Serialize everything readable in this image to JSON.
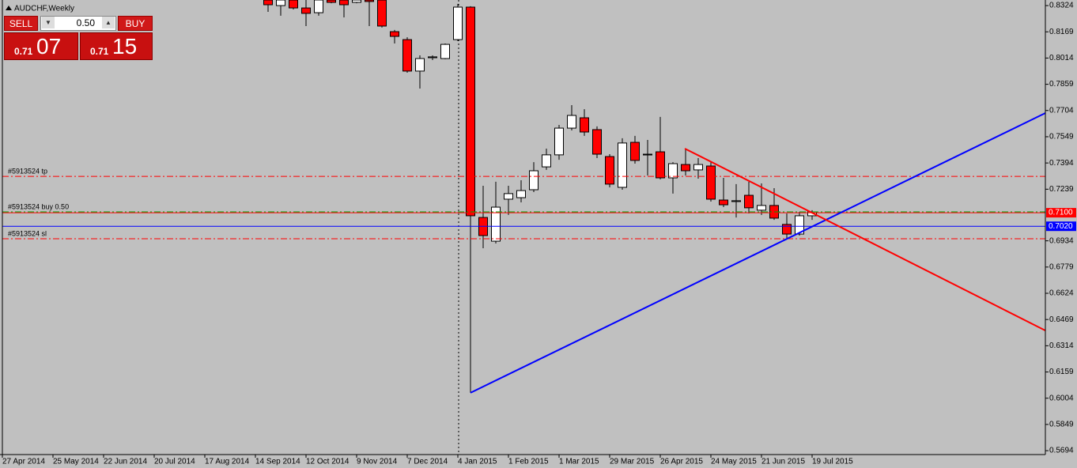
{
  "chart_data": {
    "type": "candlestick",
    "title": "AUDCHF,Weekly",
    "categories": [
      "27 Apr 2014",
      null,
      null,
      null,
      "25 May 2014",
      null,
      null,
      null,
      "22 Jun 2014",
      null,
      null,
      null,
      "20 Jul 2014",
      null,
      null,
      null,
      "17 Aug 2014",
      null,
      null,
      null,
      "14 Sep 2014",
      null,
      null,
      null,
      "12 Oct 2014",
      null,
      null,
      null,
      "9 Nov 2014",
      null,
      null,
      null,
      "7 Dec 2014",
      null,
      null,
      null,
      "4 Jan 2015",
      null,
      null,
      null,
      "1 Feb 2015",
      null,
      null,
      null,
      "1 Mar 2015",
      null,
      null,
      null,
      "29 Mar 2015",
      null,
      null,
      null,
      "26 Apr 2015",
      null,
      null,
      null,
      "24 May 2015",
      null,
      null,
      null,
      "21 Jun 2015",
      null,
      null,
      null,
      "19 Jul 2015"
    ],
    "open": [
      null,
      null,
      null,
      null,
      null,
      null,
      null,
      null,
      null,
      null,
      null,
      null,
      null,
      null,
      null,
      null,
      null,
      null,
      null,
      null,
      null,
      0.8357,
      0.8324,
      0.8357,
      0.831,
      0.8282,
      0.8357,
      0.8357,
      0.8343,
      0.8357,
      0.8357,
      0.817,
      0.8123,
      0.7937,
      0.8016,
      0.8011,
      0.8123,
      0.8315,
      0.7072,
      0.6932,
      0.718,
      0.7189,
      0.7236,
      0.7371,
      0.7442,
      0.76,
      0.7661,
      0.7591,
      0.7432,
      0.725,
      0.7516,
      0.7442,
      0.746,
      0.7306,
      0.7385,
      0.7353,
      0.7376,
      0.7175,
      0.7166,
      0.7203,
      0.7115,
      0.7143,
      0.7031,
      0.6974,
      0.7082
    ],
    "high": [
      null,
      null,
      null,
      null,
      null,
      null,
      null,
      null,
      null,
      null,
      null,
      null,
      null,
      null,
      null,
      null,
      null,
      null,
      null,
      null,
      null,
      0.8357,
      0.8357,
      0.8357,
      0.8357,
      0.8357,
      0.8357,
      0.8357,
      0.8357,
      0.8357,
      0.8357,
      0.818,
      0.8137,
      0.803,
      0.803,
      0.81,
      0.8334,
      0.832,
      0.7259,
      0.7283,
      0.7259,
      0.7292,
      0.7399,
      0.7479,
      0.7619,
      0.7736,
      0.7712,
      0.761,
      0.7446,
      0.754,
      0.7554,
      0.753,
      0.7666,
      0.7399,
      0.7479,
      0.7423,
      0.7399,
      0.7306,
      0.7269,
      0.7283,
      0.7273,
      0.7245,
      0.7096,
      0.7105,
      0.7115
    ],
    "low": [
      null,
      null,
      null,
      null,
      null,
      null,
      null,
      null,
      null,
      null,
      null,
      null,
      null,
      null,
      null,
      null,
      null,
      null,
      null,
      null,
      null,
      0.8287,
      0.8264,
      0.8301,
      0.8203,
      0.8264,
      0.8338,
      0.8254,
      0.8338,
      0.8203,
      0.8194,
      0.81,
      0.7927,
      0.7834,
      0.8002,
      0.8007,
      0.8114,
      0.6036,
      0.689,
      0.6918,
      0.7087,
      0.7161,
      0.7222,
      0.7353,
      0.7413,
      0.7586,
      0.7554,
      0.7423,
      0.725,
      0.7236,
      0.739,
      0.732,
      0.7297,
      0.7213,
      0.732,
      0.7301,
      0.7166,
      0.7133,
      0.7072,
      0.7096,
      0.7087,
      0.7058,
      0.6942,
      0.6965,
      0.7058
    ],
    "close": [
      null,
      null,
      null,
      null,
      null,
      null,
      null,
      null,
      null,
      null,
      null,
      null,
      null,
      null,
      null,
      null,
      null,
      null,
      null,
      null,
      null,
      0.8329,
      0.8357,
      0.831,
      0.8278,
      0.8357,
      0.8343,
      0.8329,
      0.8357,
      0.8348,
      0.8203,
      0.8142,
      0.7937,
      0.8011,
      0.8021,
      0.8095,
      0.8315,
      0.7082,
      0.6965,
      0.7133,
      0.7213,
      0.7231,
      0.7348,
      0.7442,
      0.76,
      0.7675,
      0.7577,
      0.7446,
      0.7269,
      0.7512,
      0.7409,
      0.7446,
      0.7306,
      0.739,
      0.7348,
      0.7385,
      0.718,
      0.7147,
      0.7171,
      0.7129,
      0.7143,
      0.7068,
      0.6974,
      0.7082,
      0.7105
    ],
    "up_color": "#ffffff",
    "down_color": "#ff0000",
    "ylim": [
      0.5671,
      0.8357
    ],
    "yticks": [
      {
        "value": 0.8324,
        "label": "0.8324"
      },
      {
        "value": 0.8169,
        "label": "0.8169"
      },
      {
        "value": 0.8014,
        "label": "0.8014"
      },
      {
        "value": 0.7859,
        "label": "0.7859"
      },
      {
        "value": 0.7704,
        "label": "0.7704"
      },
      {
        "value": 0.7549,
        "label": "0.7549"
      },
      {
        "value": 0.7394,
        "label": "0.7394"
      },
      {
        "value": 0.7239,
        "label": "0.7239"
      },
      {
        "value": 0.6934,
        "label": "0.6934"
      },
      {
        "value": 0.6779,
        "label": "0.6779"
      },
      {
        "value": 0.6624,
        "label": "0.6624"
      },
      {
        "value": 0.6469,
        "label": "0.6469"
      },
      {
        "value": 0.6314,
        "label": "0.6314"
      },
      {
        "value": 0.6159,
        "label": "0.6159"
      },
      {
        "value": 0.6004,
        "label": "0.6004"
      },
      {
        "value": 0.5849,
        "label": "0.5849"
      },
      {
        "value": 0.5694,
        "label": "0.5694"
      }
    ],
    "levels": [
      {
        "label": "#5913524 tp",
        "value": 0.7315,
        "color": "#ff0000"
      },
      {
        "label": "#5913524 buy 0.50",
        "value": 0.7105,
        "color": "#00a000"
      },
      {
        "label": "#5913524 sl",
        "value": 0.6946,
        "color": "#ff0000"
      }
    ],
    "price_tags": [
      {
        "value": 0.71,
        "label": "0.7100",
        "color": "#ff0000"
      },
      {
        "value": 0.702,
        "label": "0.7020",
        "color": "#0000ff"
      }
    ],
    "trendlines": [
      {
        "color": "#0000ff",
        "x": [
          37,
          82.44
        ],
        "y": [
          0.6036,
          0.7689
        ]
      },
      {
        "color": "#ff0000",
        "x": [
          53.94,
          82.44
        ],
        "y": [
          0.7479,
          0.6404
        ]
      }
    ]
  },
  "panel": {
    "sell": "SELL",
    "buy": "BUY",
    "lot": "0.50",
    "sell_price_small": "0.71",
    "sell_price_big": "07",
    "buy_price_small": "0.71",
    "buy_price_big": "15"
  }
}
